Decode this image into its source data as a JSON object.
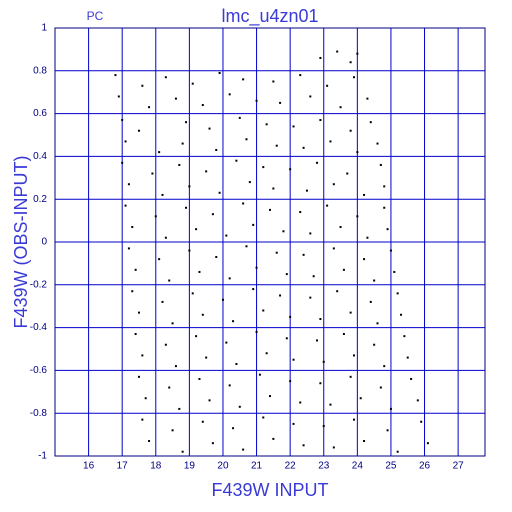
{
  "chart_data": {
    "type": "scatter",
    "title": "lmc_u4zn01",
    "subtitle": "PC",
    "x_label": "F439W INPUT",
    "y_label": "F439W (OBS-INPUT)",
    "color": "#000000",
    "grid": true,
    "grid_color": "#0000cc",
    "xlim": [
      15,
      27.8
    ],
    "ylim": [
      -1,
      1
    ],
    "xticks": [
      16,
      17,
      18,
      19,
      20,
      21,
      22,
      23,
      24,
      25,
      26,
      27
    ],
    "yticks": [
      -1,
      -0.8,
      -0.6,
      -0.4,
      -0.2,
      0,
      0.2,
      0.4,
      0.6,
      0.8,
      1
    ],
    "x": [
      16.8,
      17.6,
      18.3,
      19.1,
      19.9,
      20.6,
      21.5,
      22.3,
      23.1,
      23.9,
      22.9,
      23.4,
      23.8,
      24.0,
      16.9,
      17.8,
      18.6,
      19.4,
      20.2,
      21.0,
      21.7,
      22.6,
      23.5,
      24.3,
      17.0,
      17.5,
      18.9,
      19.6,
      20.5,
      21.3,
      22.1,
      22.9,
      23.8,
      24.4,
      17.1,
      18.1,
      18.8,
      19.8,
      20.7,
      21.6,
      22.4,
      23.2,
      24.0,
      24.6,
      17.0,
      17.9,
      18.7,
      19.5,
      20.4,
      21.2,
      22.0,
      22.8,
      23.7,
      24.7,
      17.2,
      18.2,
      19.0,
      19.9,
      20.8,
      21.5,
      22.5,
      23.3,
      24.2,
      24.8,
      17.1,
      18.0,
      18.9,
      19.7,
      20.6,
      21.4,
      22.3,
      23.1,
      24.0,
      24.8,
      17.3,
      18.3,
      19.2,
      20.1,
      20.9,
      21.8,
      22.6,
      23.5,
      24.3,
      24.9,
      17.2,
      18.1,
      19.0,
      19.8,
      20.7,
      21.6,
      22.4,
      23.3,
      24.2,
      25.0,
      17.4,
      18.4,
      19.3,
      20.2,
      21.0,
      21.9,
      22.7,
      23.6,
      24.5,
      25.1,
      17.3,
      18.2,
      19.1,
      20.0,
      20.9,
      21.7,
      22.6,
      23.4,
      24.4,
      25.2,
      17.5,
      18.5,
      19.4,
      20.3,
      21.2,
      22.0,
      22.9,
      23.8,
      24.6,
      25.3,
      17.4,
      18.3,
      19.2,
      20.1,
      21.0,
      21.9,
      22.8,
      23.6,
      24.5,
      25.4,
      17.6,
      18.6,
      19.5,
      20.4,
      21.3,
      22.1,
      23.0,
      23.9,
      24.8,
      25.5,
      17.5,
      18.4,
      19.3,
      20.2,
      21.1,
      22.0,
      22.9,
      23.8,
      24.7,
      25.6,
      17.7,
      18.7,
      19.6,
      20.5,
      21.4,
      22.3,
      23.2,
      24.1,
      25.0,
      25.8,
      17.6,
      18.5,
      19.4,
      20.3,
      21.2,
      22.1,
      23.0,
      23.9,
      24.9,
      25.9,
      17.8,
      18.8,
      19.7,
      20.6,
      21.5,
      22.4,
      23.3,
      24.2,
      25.2,
      26.1
    ],
    "values": [
      0.78,
      0.73,
      0.77,
      0.74,
      0.79,
      0.76,
      0.75,
      0.78,
      0.73,
      0.77,
      0.86,
      0.89,
      0.84,
      0.88,
      0.68,
      0.63,
      0.67,
      0.64,
      0.69,
      0.66,
      0.65,
      0.68,
      0.63,
      0.67,
      0.57,
      0.52,
      0.56,
      0.53,
      0.58,
      0.55,
      0.54,
      0.57,
      0.52,
      0.56,
      0.47,
      0.42,
      0.46,
      0.43,
      0.48,
      0.45,
      0.44,
      0.47,
      0.42,
      0.46,
      0.37,
      0.32,
      0.36,
      0.33,
      0.38,
      0.35,
      0.34,
      0.37,
      0.32,
      0.36,
      0.27,
      0.22,
      0.26,
      0.23,
      0.28,
      0.25,
      0.24,
      0.27,
      0.22,
      0.26,
      0.17,
      0.12,
      0.16,
      0.13,
      0.18,
      0.15,
      0.14,
      0.17,
      0.12,
      0.16,
      0.07,
      0.02,
      0.06,
      0.03,
      0.08,
      0.05,
      0.04,
      0.07,
      0.02,
      0.06,
      -0.03,
      -0.08,
      -0.04,
      -0.07,
      -0.02,
      -0.05,
      -0.06,
      -0.03,
      -0.08,
      -0.04,
      -0.13,
      -0.18,
      -0.14,
      -0.17,
      -0.12,
      -0.15,
      -0.16,
      -0.13,
      -0.18,
      -0.14,
      -0.23,
      -0.28,
      -0.24,
      -0.27,
      -0.22,
      -0.25,
      -0.26,
      -0.23,
      -0.28,
      -0.24,
      -0.33,
      -0.38,
      -0.34,
      -0.37,
      -0.32,
      -0.35,
      -0.36,
      -0.33,
      -0.38,
      -0.34,
      -0.43,
      -0.48,
      -0.44,
      -0.47,
      -0.42,
      -0.45,
      -0.46,
      -0.43,
      -0.48,
      -0.44,
      -0.53,
      -0.58,
      -0.54,
      -0.57,
      -0.52,
      -0.55,
      -0.56,
      -0.53,
      -0.58,
      -0.54,
      -0.63,
      -0.68,
      -0.64,
      -0.67,
      -0.62,
      -0.65,
      -0.66,
      -0.63,
      -0.68,
      -0.64,
      -0.73,
      -0.78,
      -0.74,
      -0.77,
      -0.72,
      -0.75,
      -0.76,
      -0.73,
      -0.78,
      -0.74,
      -0.83,
      -0.88,
      -0.84,
      -0.87,
      -0.82,
      -0.85,
      -0.86,
      -0.83,
      -0.88,
      -0.84,
      -0.93,
      -0.98,
      -0.94,
      -0.97,
      -0.92,
      -0.95,
      -0.96,
      -0.93,
      -0.98,
      -0.94
    ]
  }
}
